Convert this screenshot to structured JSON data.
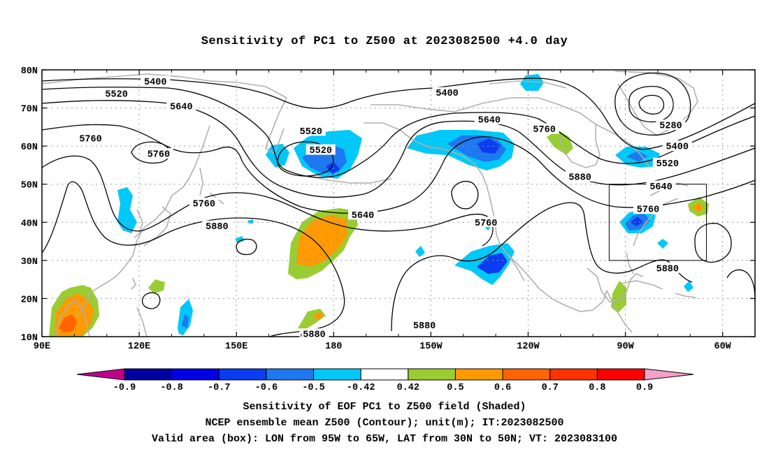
{
  "title": "Sensitivity of PC1 to Z500 at 2023082500 +4.0 day",
  "map": {
    "lon_range": [
      90,
      310
    ],
    "lat_range": [
      10,
      80
    ],
    "lat_ticks": [
      {
        "lat": 80,
        "label": "80N"
      },
      {
        "lat": 70,
        "label": "70N"
      },
      {
        "lat": 60,
        "label": "60N"
      },
      {
        "lat": 50,
        "label": "50N"
      },
      {
        "lat": 40,
        "label": "40N"
      },
      {
        "lat": 30,
        "label": "30N"
      },
      {
        "lat": 20,
        "label": "20N"
      },
      {
        "lat": 10,
        "label": "10N"
      }
    ],
    "lon_ticks": [
      {
        "lon": 90,
        "label": "90E"
      },
      {
        "lon": 120,
        "label": "120E"
      },
      {
        "lon": 150,
        "label": "150E"
      },
      {
        "lon": 180,
        "label": "180"
      },
      {
        "lon": 210,
        "label": "150W"
      },
      {
        "lon": 240,
        "label": "120W"
      },
      {
        "lon": 270,
        "label": "90W"
      },
      {
        "lon": 300,
        "label": "60W"
      }
    ],
    "grid_lines": "dotted",
    "valid_box": {
      "lon_min": 265,
      "lon_max": 295,
      "lat_min": 30,
      "lat_max": 50
    },
    "contour_labels": [
      {
        "lon": 125,
        "lat": 77,
        "text": "5400"
      },
      {
        "lon": 113,
        "lat": 73.8,
        "text": "5520"
      },
      {
        "lon": 133,
        "lat": 70.5,
        "text": "5640"
      },
      {
        "lon": 105,
        "lat": 62,
        "text": "5760"
      },
      {
        "lon": 126,
        "lat": 58,
        "text": "5760"
      },
      {
        "lon": 215,
        "lat": 74,
        "text": "5400"
      },
      {
        "lon": 173,
        "lat": 64,
        "text": "5520"
      },
      {
        "lon": 176,
        "lat": 59,
        "text": "5520"
      },
      {
        "lon": 228,
        "lat": 67,
        "text": "5640"
      },
      {
        "lon": 245,
        "lat": 64.5,
        "text": "5760"
      },
      {
        "lon": 284,
        "lat": 65.5,
        "text": "5280"
      },
      {
        "lon": 286,
        "lat": 60,
        "text": "5400"
      },
      {
        "lon": 283,
        "lat": 55.5,
        "text": "5520"
      },
      {
        "lon": 281,
        "lat": 49.5,
        "text": "5640"
      },
      {
        "lon": 277,
        "lat": 43.5,
        "text": "5760"
      },
      {
        "lon": 256,
        "lat": 52,
        "text": "5880"
      },
      {
        "lon": 140,
        "lat": 45,
        "text": "5760"
      },
      {
        "lon": 144,
        "lat": 39,
        "text": "5880"
      },
      {
        "lon": 189,
        "lat": 42,
        "text": "5640"
      },
      {
        "lon": 227,
        "lat": 40,
        "text": "5760"
      },
      {
        "lon": 208,
        "lat": 13,
        "text": "5880"
      },
      {
        "lon": 283,
        "lat": 28,
        "text": "5880"
      },
      {
        "lon": 174,
        "lat": 10.7,
        "text": "5880"
      }
    ]
  },
  "colorbar": {
    "labels": [
      "-0.9",
      "-0.8",
      "-0.7",
      "-0.6",
      "-0.5",
      "-0.42",
      "0.42",
      "0.5",
      "0.6",
      "0.7",
      "0.8",
      "0.9"
    ],
    "colors": {
      "low_end": "#c0008c",
      "high_end": "#f4a0c8",
      "bins": [
        "#0000a0",
        "#0000e6",
        "#0a3cf0",
        "#1e78f0",
        "#00c8f8",
        "#ffffff",
        "#9acd32",
        "#ff9a00",
        "#ff6400",
        "#ff3200",
        "#ff0000"
      ]
    }
  },
  "caption": {
    "line1": "Sensitivity of EOF PC1 to Z500 field (Shaded)",
    "line2": "NCEP ensemble mean Z500 (Contour); unit(m); IT:2023082500",
    "line3": "Valid area (box): LON from 95W to 65W, LAT from 30N to 50N; VT: 2023083100"
  }
}
